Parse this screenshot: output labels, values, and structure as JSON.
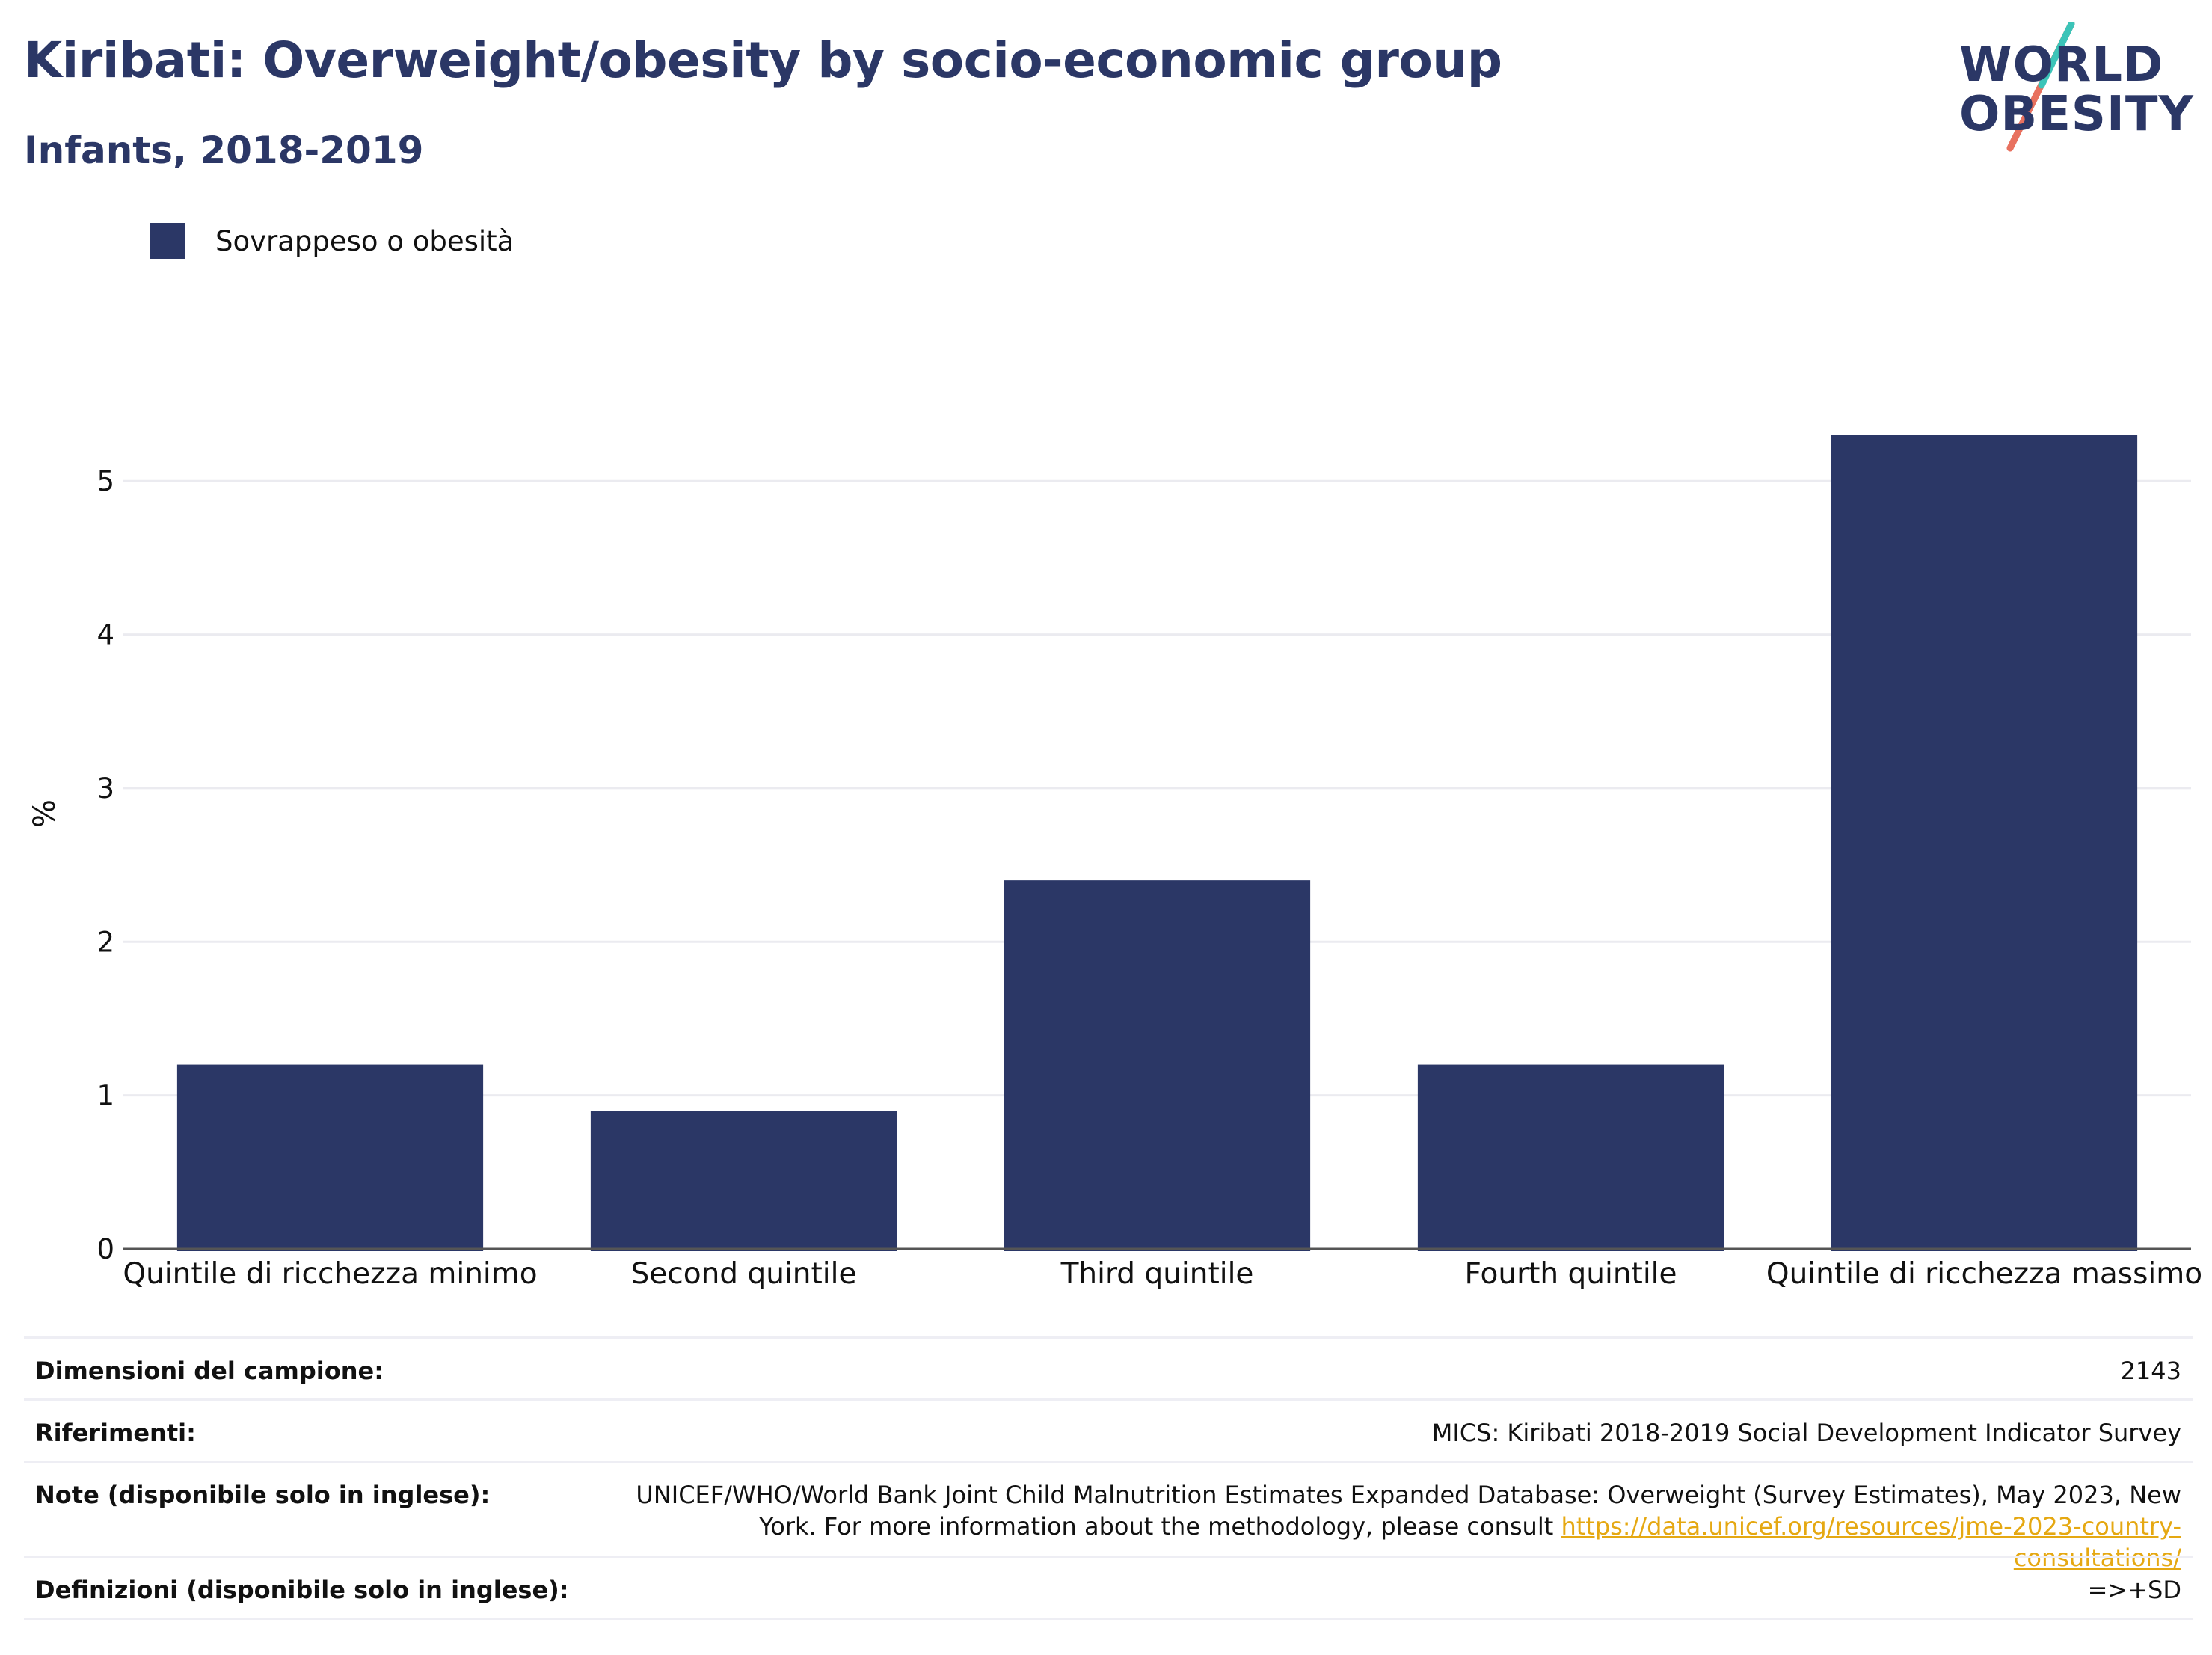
{
  "title": "Kiribati: Overweight/obesity by socio-economic group",
  "subtitle": "Infants, 2018-2019",
  "logo": {
    "line1": "WORLD",
    "line2": "OBESITY"
  },
  "legend": {
    "label": "Sovrappeso o obesità",
    "color": "#2b3766"
  },
  "chart_data": {
    "type": "bar",
    "categories": [
      "Quintile di ricchezza minimo",
      "Second quintile",
      "Third quintile",
      "Fourth quintile",
      "Quintile di ricchezza massimo"
    ],
    "series": [
      {
        "name": "Sovrappeso o obesità",
        "values": [
          1.2,
          0.9,
          2.4,
          1.2,
          5.3
        ],
        "color": "#2b3766"
      }
    ],
    "ylabel": "%",
    "xlabel": "",
    "ylim": [
      0,
      5.6
    ],
    "yticks": [
      0,
      1,
      2,
      3,
      4,
      5
    ],
    "grid": true,
    "legend_position": "top-left"
  },
  "table": {
    "rows": [
      {
        "key": "Dimensioni del campione:",
        "value": "2143"
      },
      {
        "key": "Riferimenti:",
        "value": "MICS: Kiribati 2018-2019 Social Development Indicator Survey"
      },
      {
        "key": "Note (disponibile solo in inglese):",
        "value": "UNICEF/WHO/World Bank Joint Child Malnutrition Estimates Expanded Database: Overweight (Survey Estimates), May 2023, New York. For more information about the methodology, please consult",
        "link": "https://data.unicef.org/resources/jme-2023-country-consultations/"
      },
      {
        "key": "Definizioni (disponibile solo in inglese):",
        "value": "=>+SD"
      }
    ]
  }
}
